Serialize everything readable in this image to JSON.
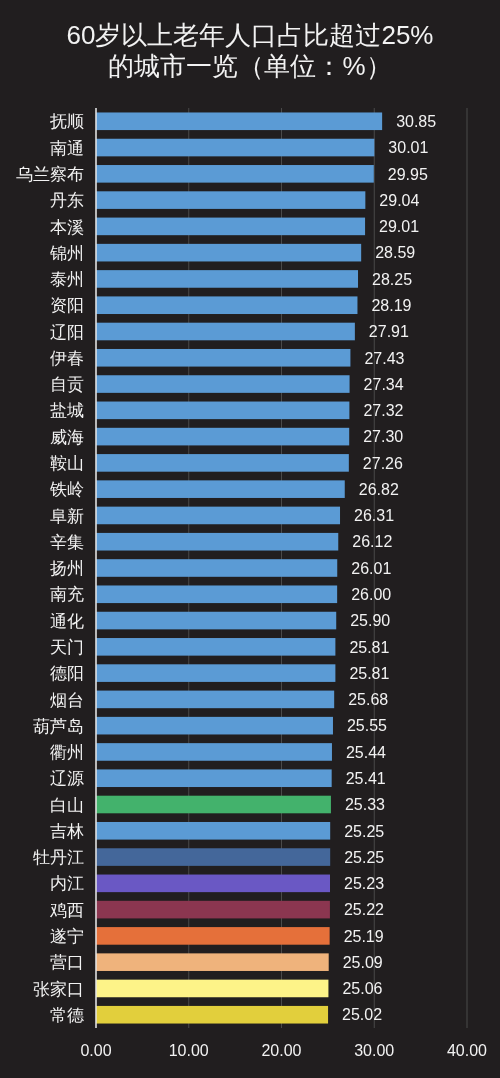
{
  "chart_data": {
    "type": "bar",
    "orientation": "horizontal",
    "title": "60岁以上老年人口占比超过25%的城市一览（单位：%）",
    "categories": [
      "抚顺",
      "南通",
      "乌兰察布",
      "丹东",
      "本溪",
      "锦州",
      "泰州",
      "资阳",
      "辽阳",
      "伊春",
      "自贡",
      "盐城",
      "威海",
      "鞍山",
      "铁岭",
      "阜新",
      "辛集",
      "扬州",
      "南充",
      "通化",
      "天门",
      "德阳",
      "烟台",
      "葫芦岛",
      "衢州",
      "辽源",
      "白山",
      "吉林",
      "牡丹江",
      "内江",
      "鸡西",
      "遂宁",
      "营口",
      "张家口",
      "常德"
    ],
    "values": [
      30.85,
      30.01,
      29.95,
      29.04,
      29.01,
      28.59,
      28.25,
      28.19,
      27.91,
      27.43,
      27.34,
      27.32,
      27.3,
      27.26,
      26.82,
      26.31,
      26.12,
      26.01,
      26.0,
      25.9,
      25.81,
      25.81,
      25.68,
      25.55,
      25.44,
      25.41,
      25.33,
      25.25,
      25.25,
      25.23,
      25.22,
      25.19,
      25.09,
      25.06,
      25.02
    ],
    "value_labels": [
      "30.85",
      "30.01",
      "29.95",
      "29.04",
      "29.01",
      "28.59",
      "28.25",
      "28.19",
      "27.91",
      "27.43",
      "27.34",
      "27.32",
      "27.30",
      "27.26",
      "26.82",
      "26.31",
      "26.12",
      "26.01",
      "26.00",
      "25.90",
      "25.81",
      "25.81",
      "25.68",
      "25.55",
      "25.44",
      "25.41",
      "25.33",
      "25.25",
      "25.25",
      "25.23",
      "25.22",
      "25.19",
      "25.09",
      "25.06",
      "25.02"
    ],
    "colors": [
      "#5b9bd5",
      "#5b9bd5",
      "#5b9bd5",
      "#5b9bd5",
      "#5b9bd5",
      "#5b9bd5",
      "#5b9bd5",
      "#5b9bd5",
      "#5b9bd5",
      "#5b9bd5",
      "#5b9bd5",
      "#5b9bd5",
      "#5b9bd5",
      "#5b9bd5",
      "#5b9bd5",
      "#5b9bd5",
      "#5b9bd5",
      "#5b9bd5",
      "#5b9bd5",
      "#5b9bd5",
      "#5b9bd5",
      "#5b9bd5",
      "#5b9bd5",
      "#5b9bd5",
      "#5b9bd5",
      "#5b9bd5",
      "#43b26c",
      "#5b9bd5",
      "#44679a",
      "#6a58c4",
      "#8b3650",
      "#e5703a",
      "#efb37c",
      "#fdf388",
      "#e2cf3c"
    ],
    "xlim": [
      0,
      40
    ],
    "xticks": [
      {
        "value": 0,
        "label": "0.00"
      },
      {
        "value": 10,
        "label": "10.00"
      },
      {
        "value": 20,
        "label": "20.00"
      },
      {
        "value": 30,
        "label": "30.00"
      },
      {
        "value": 40,
        "label": "40.00"
      }
    ],
    "grid": "x"
  }
}
